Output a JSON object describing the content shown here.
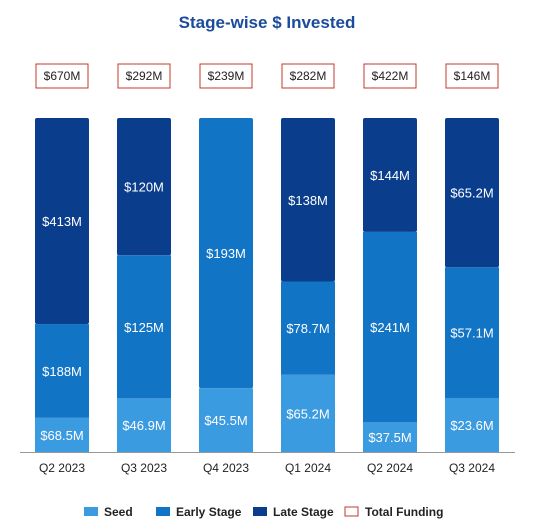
{
  "chart_data": {
    "type": "bar",
    "stacked": true,
    "title": "Stage-wise $ Invested",
    "categories": [
      "Q2 2023",
      "Q3 2023",
      "Q4 2023",
      "Q1 2024",
      "Q2 2024",
      "Q3 2024"
    ],
    "series": [
      {
        "name": "Seed",
        "color": "#3b9be0",
        "values": [
          68.5,
          46.9,
          45.5,
          65.2,
          37.5,
          23.6
        ],
        "labels": [
          "$68.5M",
          "$46.9M",
          "$45.5M",
          "$65.2M",
          "$37.5M",
          "$23.6M"
        ]
      },
      {
        "name": "Early Stage",
        "color": "#1274c4",
        "values": [
          188,
          125,
          193,
          78.7,
          241,
          57.1
        ],
        "labels": [
          "$188M",
          "$125M",
          "$193M",
          "$78.7M",
          "$241M",
          "$57.1M"
        ]
      },
      {
        "name": "Late Stage",
        "color": "#0a3e8c",
        "values": [
          413,
          120,
          0,
          138,
          144,
          65.2
        ],
        "labels": [
          "$413M",
          "$120M",
          "",
          "$138M",
          "$144M",
          "$65.2M"
        ]
      }
    ],
    "totals": {
      "name": "Total Funding",
      "border_color": "#c0392b",
      "values": [
        670,
        292,
        239,
        282,
        422,
        146
      ],
      "labels": [
        "$670M",
        "$292M",
        "$239M",
        "$282M",
        "$422M",
        "$146M"
      ]
    },
    "normalized_100_percent": true,
    "grid": false,
    "legend_position": "bottom",
    "colors": {
      "title": "#1a4b9c",
      "axis": "#999999"
    }
  }
}
